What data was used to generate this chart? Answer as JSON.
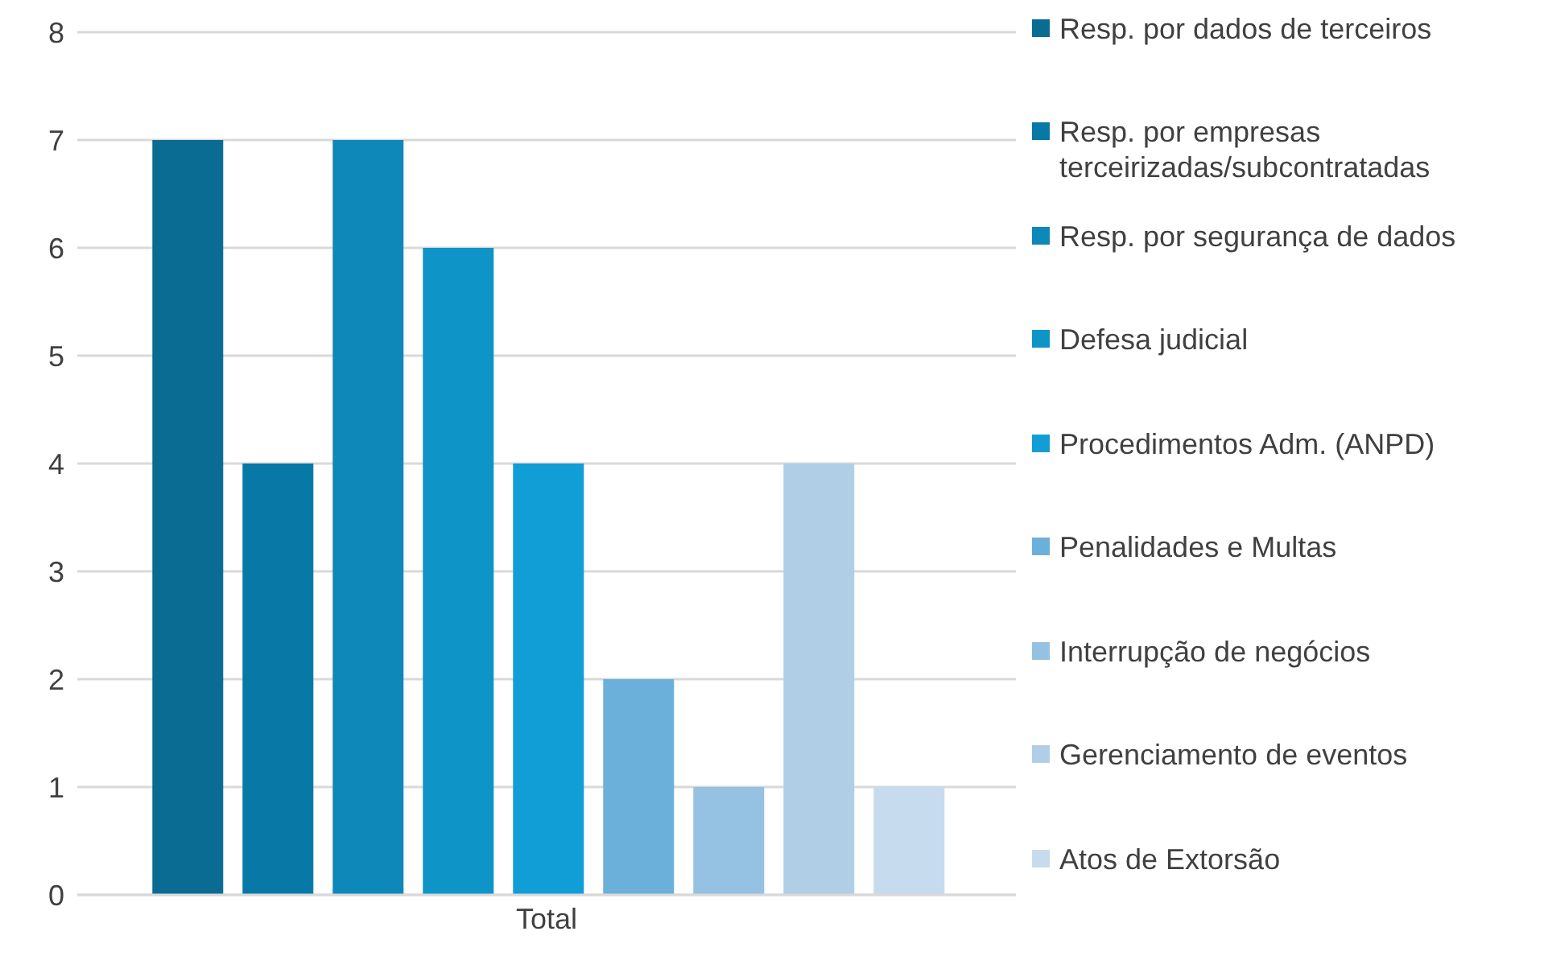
{
  "chart_data": {
    "type": "bar",
    "categories": [
      "Total"
    ],
    "series": [
      {
        "name": "Resp. por dados de terceiros",
        "color": "#0b6c93",
        "values": [
          7
        ]
      },
      {
        "name": "Resp. por empresas terceirizadas/subcontratadas",
        "color": "#0878a6",
        "values": [
          4
        ]
      },
      {
        "name": "Resp. por segurança de dados",
        "color": "#0d88b8",
        "values": [
          7
        ]
      },
      {
        "name": "Defesa judicial",
        "color": "#0f94c8",
        "values": [
          6
        ]
      },
      {
        "name": "Procedimentos Adm. (ANPD)",
        "color": "#119ed6",
        "values": [
          4
        ]
      },
      {
        "name": "Penalidades e Multas",
        "color": "#6bb0db",
        "values": [
          2
        ]
      },
      {
        "name": "Interrupção de negócios",
        "color": "#95c1e2",
        "values": [
          1
        ]
      },
      {
        "name": "Gerenciamento de eventos",
        "color": "#b0cfe7",
        "values": [
          4
        ]
      },
      {
        "name": "Atos de Extorsão",
        "color": "#c7dbee",
        "values": [
          1
        ]
      }
    ],
    "ylim": [
      0,
      8
    ],
    "yticks": [
      0,
      1,
      2,
      3,
      4,
      5,
      6,
      7,
      8
    ],
    "grid": "y",
    "legend": "right"
  }
}
